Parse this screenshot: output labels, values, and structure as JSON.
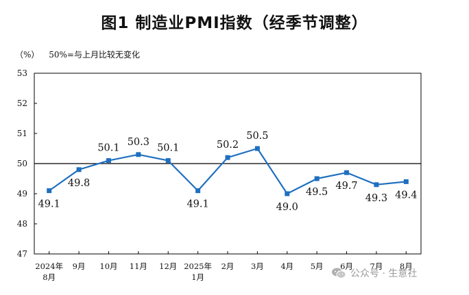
{
  "chart_data": {
    "type": "line",
    "title": "图1 制造业PMI指数（经季节调整）",
    "unit_label": "（%）",
    "reference_note": "50%=与上月比较无变化",
    "categories": [
      [
        "2024年",
        "8月"
      ],
      [
        "9月"
      ],
      [
        "10月"
      ],
      [
        "11月"
      ],
      [
        "12月"
      ],
      [
        "2025年",
        "1月"
      ],
      [
        "2月"
      ],
      [
        "3月"
      ],
      [
        "4月"
      ],
      [
        "5月"
      ],
      [
        "6月"
      ],
      [
        "7月"
      ],
      [
        "8月"
      ]
    ],
    "values": [
      49.1,
      49.8,
      50.1,
      50.3,
      50.1,
      49.1,
      50.2,
      50.5,
      49.0,
      49.5,
      49.7,
      49.3,
      49.4
    ],
    "data_labels": [
      "49.1",
      "49.8",
      "50.1",
      "50.3",
      "50.1",
      "49.1",
      "50.2",
      "50.5",
      "49.0",
      "49.5",
      "49.7",
      "49.3",
      "49.4"
    ],
    "label_position": [
      "below",
      "below",
      "above",
      "above",
      "above",
      "below",
      "above",
      "above",
      "below",
      "below",
      "below",
      "below",
      "below"
    ],
    "yticks": [
      "47",
      "48",
      "49",
      "50",
      "51",
      "52",
      "53"
    ],
    "ylim": [
      47,
      53
    ],
    "reference_line": 50,
    "grid": false,
    "line_color": "#1f6fc0",
    "reference_color": "#000000"
  },
  "watermark": {
    "text": "公众号 · 生意社",
    "icon": "wechat-icon"
  }
}
